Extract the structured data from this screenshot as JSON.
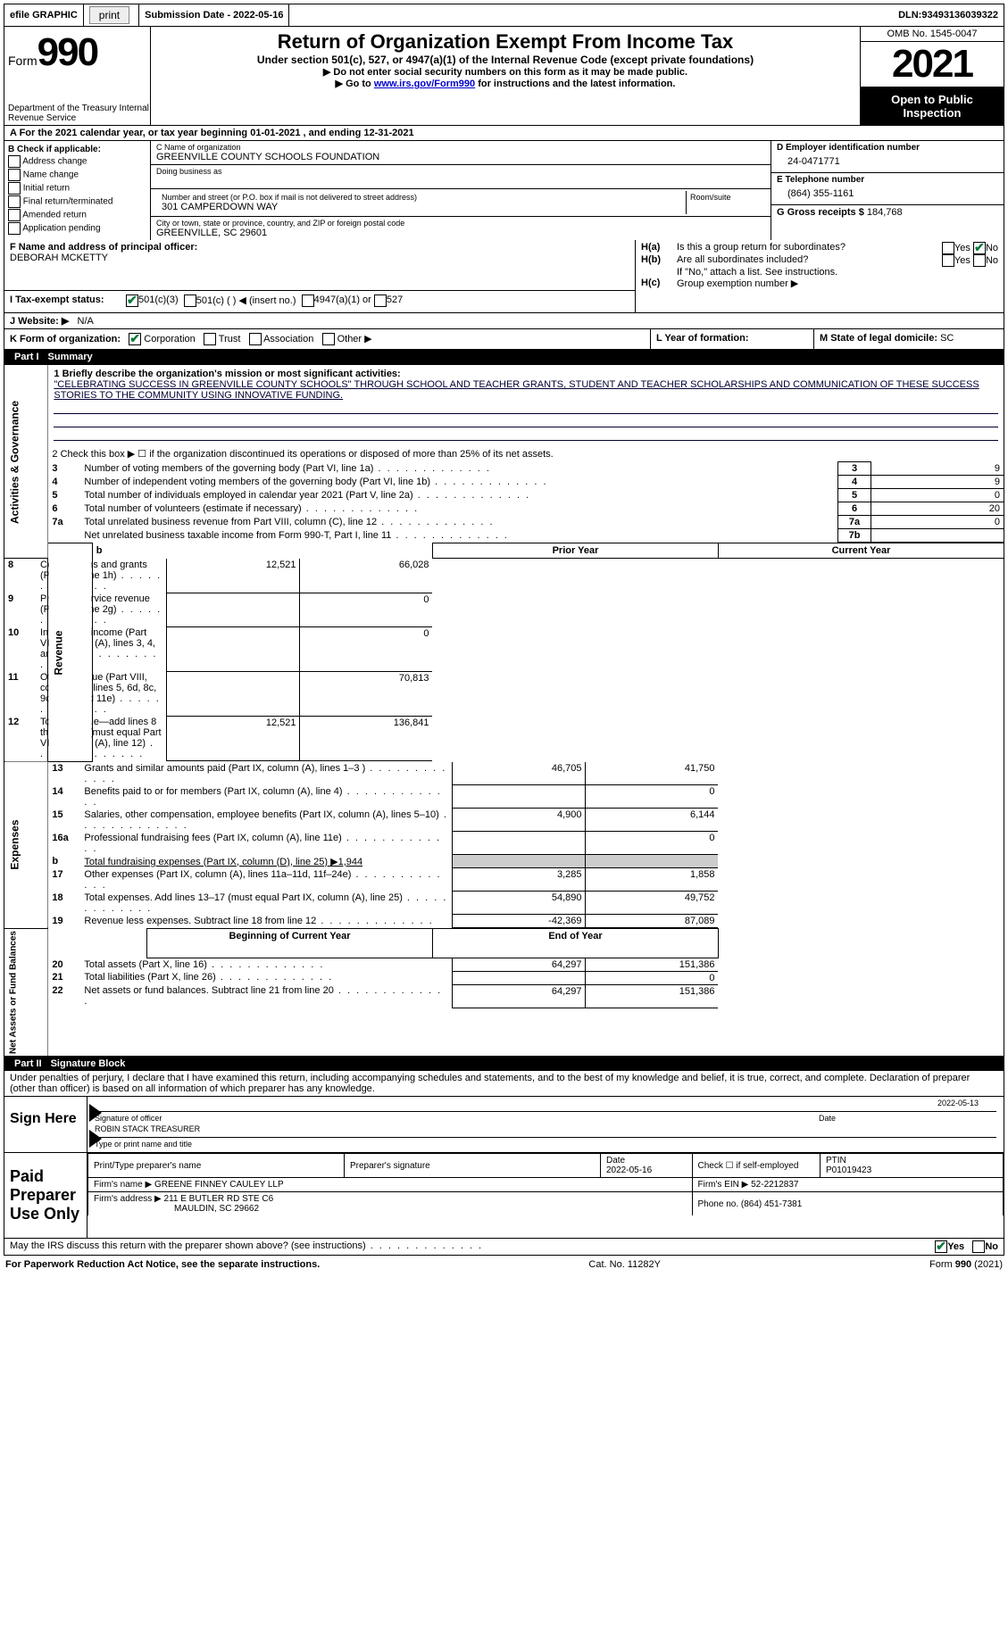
{
  "topbar": {
    "efile": "efile GRAPHIC",
    "print": "print",
    "sub_label": "Submission Date - ",
    "sub_date": "2022-05-16",
    "dln_label": "DLN: ",
    "dln": "93493136039322"
  },
  "header": {
    "form": "Form",
    "form_num": "990",
    "dept": "Department of the Treasury\nInternal Revenue Service",
    "title": "Return of Organization Exempt From Income Tax",
    "sub": "Under section 501(c), 527, or 4947(a)(1) of the Internal Revenue Code (except private foundations)",
    "line1": "▶ Do not enter social security numbers on this form as it may be made public.",
    "line2_pre": "▶ Go to ",
    "line2_link": "www.irs.gov/Form990",
    "line2_post": " for instructions and the latest information.",
    "omb": "OMB No. 1545-0047",
    "year": "2021",
    "inspect": "Open to Public Inspection"
  },
  "rowA": {
    "text_pre": "A For the 2021 calendar year, or tax year beginning ",
    "begin": "01-01-2021",
    "mid": " , and ending ",
    "end": "12-31-2021"
  },
  "colB": {
    "header": "B Check if applicable:",
    "opts": [
      "Address change",
      "Name change",
      "Initial return",
      "Final return/terminated",
      "Amended return",
      "Application pending"
    ]
  },
  "colC": {
    "name_label": "C Name of organization",
    "name": "GREENVILLE COUNTY SCHOOLS FOUNDATION",
    "dba_label": "Doing business as",
    "addr_label": "Number and street (or P.O. box if mail is not delivered to street address)",
    "addr": "301 CAMPERDOWN WAY",
    "room_label": "Room/suite",
    "city_label": "City or town, state or province, country, and ZIP or foreign postal code",
    "city": "GREENVILLE, SC  29601"
  },
  "colD": {
    "ein_label": "D Employer identification number",
    "ein": "24-0471771",
    "phone_label": "E Telephone number",
    "phone": "(864) 355-1161",
    "gross_label": "G Gross receipts $ ",
    "gross": "184,768"
  },
  "rowF": {
    "label": "F Name and address of principal officer:",
    "name": "DEBORAH MCKETTY"
  },
  "rowH": {
    "ha": "H(a) Is this a group return for subordinates?",
    "hb": "H(b) Are all subordinates included?",
    "hb_note": "If \"No,\" attach a list. See instructions.",
    "hc": "H(c) Group exemption number ▶",
    "yes": "Yes",
    "no": "No"
  },
  "rowI": {
    "label": "I  Tax-exempt status:",
    "opt1": "501(c)(3)",
    "opt2": "501(c) (   ) ◀ (insert no.)",
    "opt3": "4947(a)(1) or",
    "opt4": "527"
  },
  "rowJ": {
    "label": "J  Website: ▶",
    "val": "N/A"
  },
  "rowK": {
    "label": "K Form of organization:",
    "opts": [
      "Corporation",
      "Trust",
      "Association",
      "Other ▶"
    ],
    "checked": 0,
    "L": "L Year of formation:",
    "M": "M State of legal domicile: ",
    "Mval": "SC"
  },
  "part1": {
    "header_num": "Part I",
    "header_title": "Summary",
    "line1_label": "1  Briefly describe the organization's mission or most significant activities:",
    "mission": "\"CELEBRATING SUCCESS IN GREENVILLE COUNTY SCHOOLS\" THROUGH SCHOOL AND TEACHER GRANTS, STUDENT AND TEACHER SCHOLARSHIPS AND COMMUNICATION OF THESE SUCCESS STORIES TO THE COMMUNITY USING INNOVATIVE FUNDING.",
    "line2": "2   Check this box ▶ ☐ if the organization discontinued its operations or disposed of more than 25% of its net assets.",
    "sidelabels": {
      "gov": "Activities & Governance",
      "rev": "Revenue",
      "exp": "Expenses",
      "net": "Net Assets or Fund Balances"
    },
    "rows_gov": [
      {
        "n": "3",
        "t": "Number of voting members of the governing body (Part VI, line 1a)",
        "box": "3",
        "v": "9"
      },
      {
        "n": "4",
        "t": "Number of independent voting members of the governing body (Part VI, line 1b)",
        "box": "4",
        "v": "9"
      },
      {
        "n": "5",
        "t": "Total number of individuals employed in calendar year 2021 (Part V, line 2a)",
        "box": "5",
        "v": "0"
      },
      {
        "n": "6",
        "t": "Total number of volunteers (estimate if necessary)",
        "box": "6",
        "v": "20"
      },
      {
        "n": "7a",
        "t": "Total unrelated business revenue from Part VIII, column (C), line 12",
        "box": "7a",
        "v": "0"
      },
      {
        "n": "",
        "t": "Net unrelated business taxable income from Form 990-T, Part I, line 11",
        "box": "7b",
        "v": ""
      }
    ],
    "col_headers": {
      "b": "b",
      "prior": "Prior Year",
      "current": "Current Year"
    },
    "rows_rev": [
      {
        "n": "8",
        "t": "Contributions and grants (Part VIII, line 1h)",
        "p": "12,521",
        "c": "66,028"
      },
      {
        "n": "9",
        "t": "Program service revenue (Part VIII, line 2g)",
        "p": "",
        "c": "0"
      },
      {
        "n": "10",
        "t": "Investment income (Part VIII, column (A), lines 3, 4, and 7d )",
        "p": "",
        "c": "0"
      },
      {
        "n": "11",
        "t": "Other revenue (Part VIII, column (A), lines 5, 6d, 8c, 9c, 10c, and 11e)",
        "p": "",
        "c": "70,813"
      },
      {
        "n": "12",
        "t": "Total revenue—add lines 8 through 11 (must equal Part VIII, column (A), line 12)",
        "p": "12,521",
        "c": "136,841"
      }
    ],
    "rows_exp": [
      {
        "n": "13",
        "t": "Grants and similar amounts paid (Part IX, column (A), lines 1–3 )",
        "p": "46,705",
        "c": "41,750"
      },
      {
        "n": "14",
        "t": "Benefits paid to or for members (Part IX, column (A), line 4)",
        "p": "",
        "c": "0"
      },
      {
        "n": "15",
        "t": "Salaries, other compensation, employee benefits (Part IX, column (A), lines 5–10)",
        "p": "4,900",
        "c": "6,144"
      },
      {
        "n": "16a",
        "t": "Professional fundraising fees (Part IX, column (A), line 11e)",
        "p": "",
        "c": "0"
      },
      {
        "n": "b",
        "t": "Total fundraising expenses (Part IX, column (D), line 25) ▶1,944",
        "p": "SHADED",
        "c": "SHADED"
      },
      {
        "n": "17",
        "t": "Other expenses (Part IX, column (A), lines 11a–11d, 11f–24e)",
        "p": "3,285",
        "c": "1,858"
      },
      {
        "n": "18",
        "t": "Total expenses. Add lines 13–17 (must equal Part IX, column (A), line 25)",
        "p": "54,890",
        "c": "49,752"
      },
      {
        "n": "19",
        "t": "Revenue less expenses. Subtract line 18 from line 12",
        "p": "-42,369",
        "c": "87,089"
      }
    ],
    "net_headers": {
      "b": "Beginning of Current Year",
      "e": "End of Year"
    },
    "rows_net": [
      {
        "n": "20",
        "t": "Total assets (Part X, line 16)",
        "p": "64,297",
        "c": "151,386"
      },
      {
        "n": "21",
        "t": "Total liabilities (Part X, line 26)",
        "p": "",
        "c": "0"
      },
      {
        "n": "22",
        "t": "Net assets or fund balances. Subtract line 21 from line 20",
        "p": "64,297",
        "c": "151,386"
      }
    ]
  },
  "part2": {
    "header_num": "Part II",
    "header_title": "Signature Block",
    "decl": "Under penalties of perjury, I declare that I have examined this return, including accompanying schedules and statements, and to the best of my knowledge and belief, it is true, correct, and complete. Declaration of preparer (other than officer) is based on all information of which preparer has any knowledge.",
    "sign_here": "Sign Here",
    "sig_officer": "Signature of officer",
    "sig_date": "2022-05-13",
    "date_label": "Date",
    "name_title": "ROBIN STACK  TREASURER",
    "name_title_label": "Type or print name and title",
    "paid": "Paid Preparer Use Only",
    "prep_name_label": "Print/Type preparer's name",
    "prep_sig_label": "Preparer's signature",
    "prep_date_label": "Date",
    "prep_date": "2022-05-16",
    "check_if": "Check ☐ if self-employed",
    "ptin_label": "PTIN",
    "ptin": "P01019423",
    "firm_name_label": "Firm's name    ▶ ",
    "firm_name": "GREENE FINNEY CAULEY LLP",
    "firm_ein_label": "Firm's EIN ▶ ",
    "firm_ein": "52-2212837",
    "firm_addr_label": "Firm's address ▶ ",
    "firm_addr": "211 E BUTLER RD STE C6",
    "firm_city": "MAULDIN, SC  29662",
    "firm_phone_label": "Phone no. ",
    "firm_phone": "(864) 451-7381",
    "discuss": "May the IRS discuss this return with the preparer shown above? (see instructions)",
    "yes": "Yes",
    "no": "No"
  },
  "footer": {
    "left": "For Paperwork Reduction Act Notice, see the separate instructions.",
    "mid": "Cat. No. 11282Y",
    "right": "Form 990 (2021)"
  }
}
